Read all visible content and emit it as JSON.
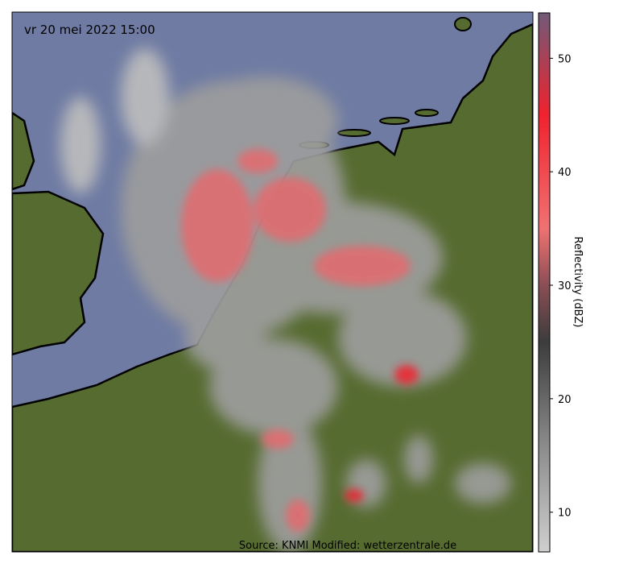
{
  "map": {
    "timestamp": "vr 20 mei 2022 15:00",
    "source": "Source: KNMI Modified: wetterzentrale.de",
    "colorbar": {
      "label": "Reflectivity (dBZ)",
      "lim": [
        6.5,
        54
      ],
      "ticks": [
        10,
        20,
        30,
        40,
        50
      ],
      "stops": [
        {
          "value": 6.5,
          "color": "#cfcfcf"
        },
        {
          "value": 16,
          "color": "#8a8a8a"
        },
        {
          "value": 25,
          "color": "#3c3c3c"
        },
        {
          "value": 30,
          "color": "#8a4e55"
        },
        {
          "value": 35,
          "color": "#f07272"
        },
        {
          "value": 45,
          "color": "#f0222e"
        },
        {
          "value": 54,
          "color": "#705a78"
        }
      ]
    }
  }
}
